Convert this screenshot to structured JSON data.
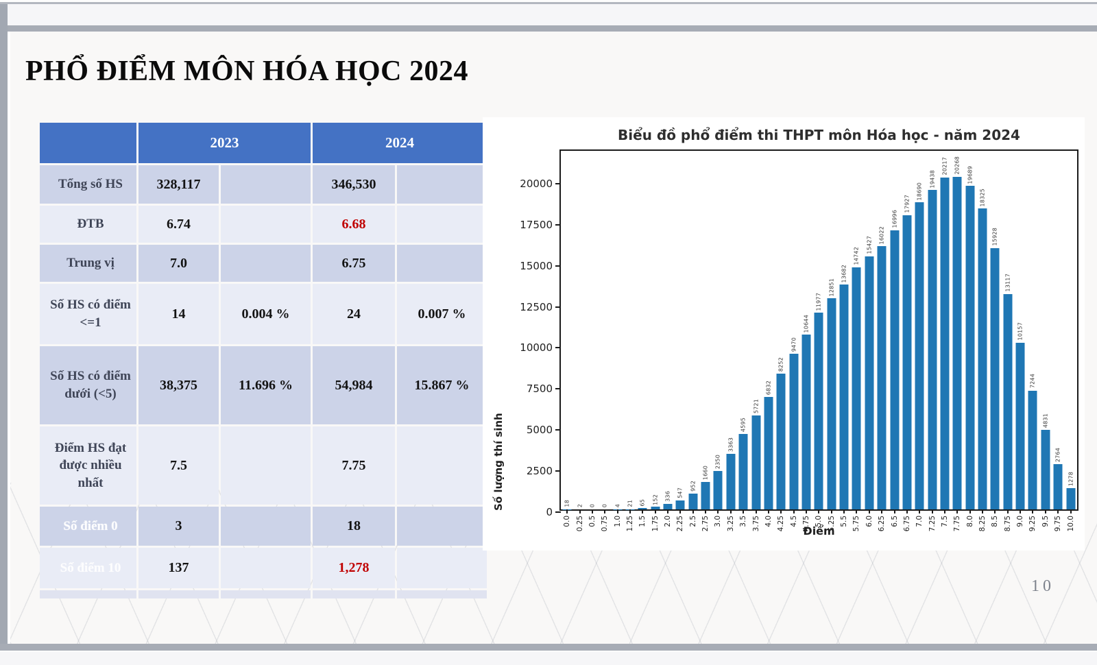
{
  "page": {
    "number": "10"
  },
  "slide": {
    "title": "PHỔ ĐIỂM MÔN HÓA HỌC 2024"
  },
  "colors": {
    "table_header": "#4472c4",
    "row_dark": "#ccd3e8",
    "row_light": "#e9ecf6",
    "red": "#c00000",
    "bar": "#1f77b4"
  },
  "table": {
    "col_headers": [
      "2023",
      "2024"
    ],
    "rows": [
      {
        "label": "Tổng số HS",
        "v2023": "328,117",
        "pct2023": "",
        "v2024": "346,530",
        "pct2024": ""
      },
      {
        "label": "ĐTB",
        "v2023": "6.74",
        "pct2023": "",
        "v2024": "6.68",
        "pct2024": ""
      },
      {
        "label": "Trung vị",
        "v2023": "7.0",
        "pct2023": "",
        "v2024": "6.75",
        "pct2024": ""
      },
      {
        "label": "Số HS có điểm <=1",
        "v2023": "14",
        "pct2023": "0.004 %",
        "v2024": "24",
        "pct2024": "0.007 %"
      },
      {
        "label": "Số HS có điểm dưới (<5)",
        "v2023": "38,375",
        "pct2023": "11.696 %",
        "v2024": "54,984",
        "pct2024": "15.867 %"
      },
      {
        "label": "Điểm HS đạt được nhiều nhất",
        "v2023": "7.5",
        "pct2023": "",
        "v2024": "7.75",
        "pct2024": ""
      },
      {
        "label": "Số điểm 0",
        "v2023": "3",
        "pct2023": "",
        "v2024": "18",
        "pct2024": ""
      },
      {
        "label": "Số điểm 10",
        "v2023": "137",
        "pct2023": "",
        "v2024": "1,278",
        "pct2024": ""
      }
    ]
  },
  "chart_data": {
    "type": "bar",
    "title": "Biểu đồ phổ điểm thi THPT môn Hóa học - năm 2024",
    "xlabel": "Điểm",
    "ylabel": "Số lượng thí sinh",
    "x": [
      "0.0",
      "0.25",
      "0.5",
      "0.75",
      "1.0",
      "1.25",
      "1.5",
      "1.75",
      "2.0",
      "2.25",
      "2.5",
      "2.75",
      "3.0",
      "3.25",
      "3.5",
      "3.75",
      "4.0",
      "4.25",
      "4.5",
      "4.75",
      "5.0",
      "5.25",
      "5.5",
      "5.75",
      "6.0",
      "6.25",
      "6.5",
      "6.75",
      "7.0",
      "7.25",
      "7.5",
      "7.75",
      "8.0",
      "8.25",
      "8.5",
      "8.75",
      "9.0",
      "9.25",
      "9.5",
      "9.75",
      "10.0"
    ],
    "values": [
      18,
      2,
      0,
      0,
      4,
      21,
      65,
      152,
      336,
      547,
      952,
      1660,
      2350,
      3363,
      4595,
      5721,
      6832,
      8252,
      9470,
      10644,
      11977,
      12851,
      13682,
      14742,
      15427,
      16022,
      16996,
      17927,
      18690,
      19438,
      20217,
      20268,
      19689,
      18325,
      15928,
      13117,
      10157,
      7244,
      4831,
      2764,
      1278
    ],
    "bar_labels": true,
    "grid": false,
    "legend": null,
    "ylim": [
      0,
      22000
    ],
    "yticks": [
      0,
      2500,
      5000,
      7500,
      10000,
      12500,
      15000,
      17500,
      20000
    ]
  }
}
